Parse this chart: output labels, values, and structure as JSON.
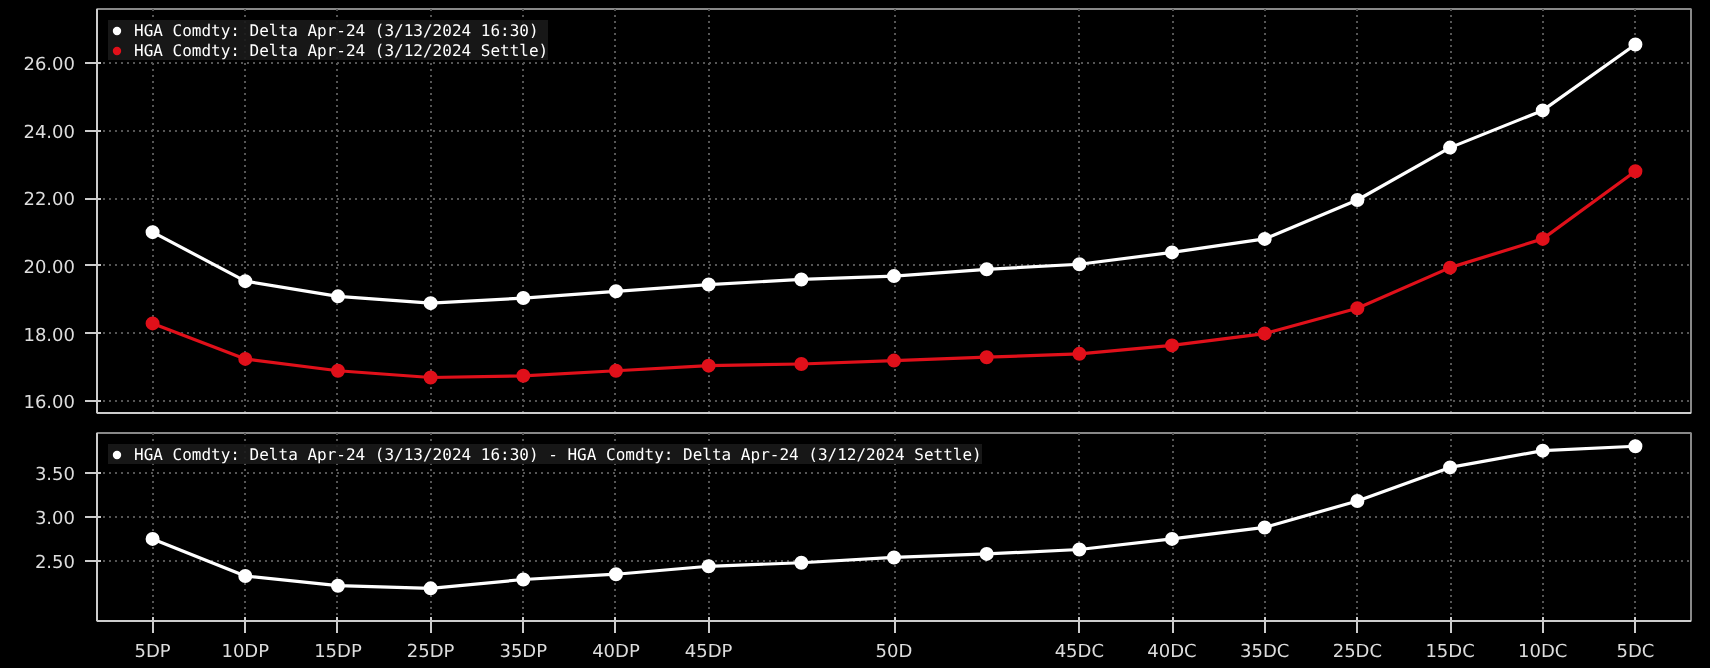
{
  "chart_data": [
    {
      "type": "line",
      "ylim": [
        15.65,
        27.6
      ],
      "yticks": [
        {
          "value": 16,
          "label": "16.00"
        },
        {
          "value": 18,
          "label": "18.00"
        },
        {
          "value": 20,
          "label": "20.00"
        },
        {
          "value": 22,
          "label": "22.00"
        },
        {
          "value": 24,
          "label": "24.00"
        },
        {
          "value": 26,
          "label": "26.00"
        }
      ],
      "grid": true,
      "legend": "top left",
      "marker": "circle",
      "line_style": "solid",
      "series": [
        {
          "name": "HGA Comdty: Delta Apr-24 (3/13/2024 16:30)",
          "color": "#ffffff",
          "values": [
            21.0,
            19.55,
            19.1,
            18.9,
            19.05,
            19.25,
            19.45,
            19.6,
            19.7,
            19.9,
            20.05,
            20.4,
            20.8,
            21.95,
            23.5,
            24.6,
            26.55
          ]
        },
        {
          "name": "HGA Comdty: Delta Apr-24 (3/12/2024 Settle)",
          "color": "#e0101a",
          "values": [
            18.3,
            17.25,
            16.9,
            16.7,
            16.75,
            16.9,
            17.05,
            17.1,
            17.2,
            17.3,
            17.4,
            17.65,
            18.0,
            18.75,
            19.95,
            20.8,
            22.8
          ]
        }
      ]
    },
    {
      "type": "line",
      "categories": [
        "5DP",
        "10DP",
        "15DP",
        "25DP",
        "35DP",
        "40DP",
        "45DP",
        null,
        "50D",
        null,
        "45DC",
        "40DC",
        "35DC",
        "25DC",
        "15DC",
        "10DC",
        "5DC"
      ],
      "ylim": [
        1.82,
        3.95
      ],
      "yticks": [
        {
          "value": 2.5,
          "label": "2.50"
        },
        {
          "value": 3,
          "label": "3.00"
        },
        {
          "value": 3.5,
          "label": "3.50"
        }
      ],
      "grid": true,
      "legend": "top left",
      "marker": "circle",
      "line_style": "solid",
      "series": [
        {
          "name": "HGA Comdty: Delta Apr-24 (3/13/2024 16:30) - HGA Comdty: Delta Apr-24 (3/12/2024 Settle)",
          "color": "#ffffff",
          "values": [
            2.75,
            2.33,
            2.22,
            2.19,
            2.29,
            2.35,
            2.44,
            2.48,
            2.54,
            2.58,
            2.63,
            2.75,
            2.88,
            3.18,
            3.56,
            3.75,
            3.8
          ]
        }
      ]
    }
  ]
}
